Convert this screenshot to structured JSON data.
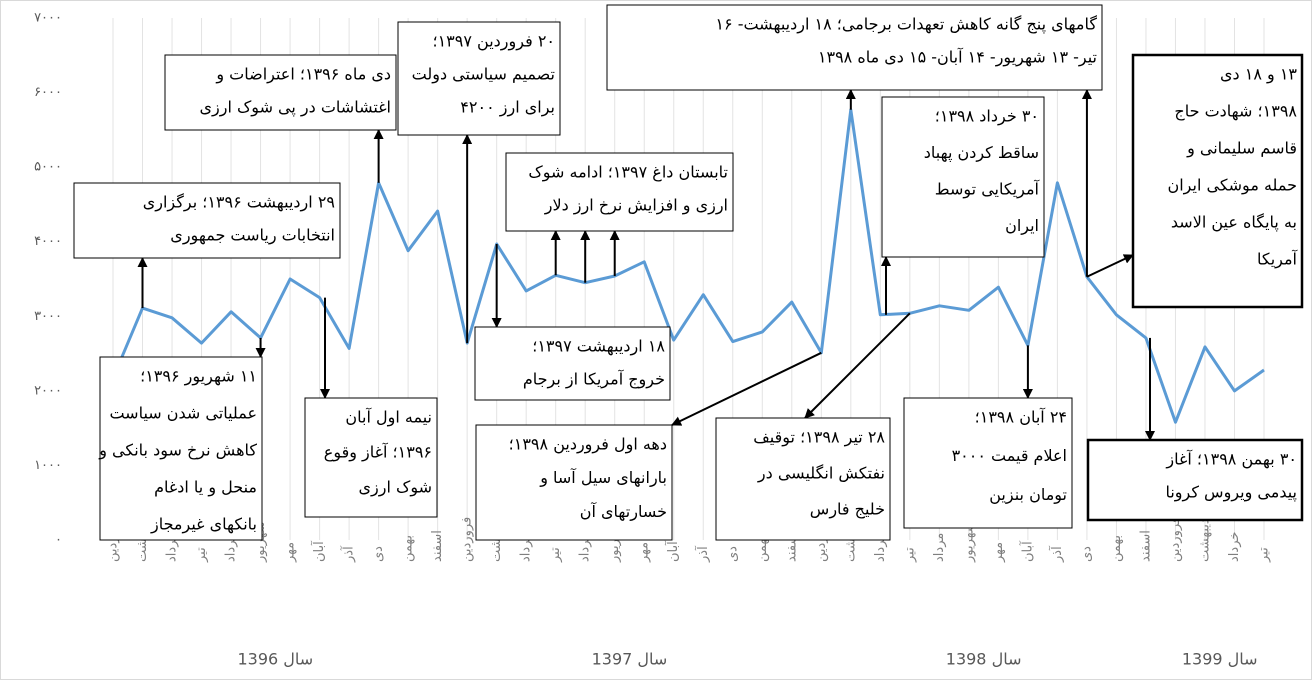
{
  "chart_data": {
    "type": "line",
    "groups": [
      {
        "name": "سال 1396",
        "categories": [
          "فروردین",
          "اردیبهشت",
          "خرداد",
          "تیر",
          "مرداد",
          "شهریور",
          "مهر",
          "آبان",
          "آذر",
          "دی",
          "بهمن",
          "اسفند"
        ]
      },
      {
        "name": "سال 1397",
        "categories": [
          "فروردین",
          "اردیبهشت",
          "خرداد",
          "تیر",
          "مرداد",
          "شهریور",
          "مهر",
          "آبان",
          "آذر",
          "دی",
          "بهمن",
          "اسفند"
        ]
      },
      {
        "name": "سال 1398",
        "categories": [
          "فروردین",
          "اردیبهشت",
          "خرداد",
          "تیر",
          "مرداد",
          "شهریور",
          "مهر",
          "آبان",
          "آذر",
          "دی",
          "بهمن",
          "اسفند"
        ]
      },
      {
        "name": "سال 1399",
        "categories": [
          "فروردین",
          "اردیبهشت",
          "خرداد",
          "تیر"
        ]
      }
    ],
    "series": [
      {
        "color": "#5b9bd5",
        "values": [
          2170,
          3110,
          2980,
          2640,
          3060,
          2710,
          3500,
          3250,
          2570,
          4790,
          3880,
          4410,
          2640,
          3970,
          3340,
          3550,
          3450,
          3540,
          3730,
          2680,
          3290,
          2660,
          2790,
          3190,
          2510,
          5770,
          3020,
          3040,
          3140,
          3080,
          3390,
          2610,
          4790,
          3530,
          3020,
          2710,
          1580,
          2590,
          2000,
          2280
        ]
      }
    ],
    "ylim": [
      0,
      7000
    ],
    "yticks": [
      {
        "value": 0,
        "label": "۰"
      },
      {
        "value": 1000,
        "label": "۱۰۰۰"
      },
      {
        "value": 2000,
        "label": "۲۰۰۰"
      },
      {
        "value": 3000,
        "label": "۳۰۰۰"
      },
      {
        "value": 4000,
        "label": "۴۰۰۰"
      },
      {
        "value": 5000,
        "label": "۵۰۰۰"
      },
      {
        "value": 6000,
        "label": "۶۰۰۰"
      },
      {
        "value": 7000,
        "label": "۷۰۰۰"
      }
    ],
    "grid": true,
    "annotations": [
      {
        "lines": [
          "۲۹ اردیبهشت ۱۳۹۶؛ برگزاری",
          "انتخابات ریاست جمهوری"
        ]
      },
      {
        "lines": [
          "دی ماه ۱۳۹۶؛ اعتراضات و",
          "اغتشاشات در پی شوک ارزی"
        ]
      },
      {
        "lines": [
          "۲۰ فروردین ۱۳۹۷؛",
          "تصمیم سیاستی دولت",
          "برای ارز ۴۲۰۰"
        ]
      },
      {
        "lines": [
          "تابستان داغ ۱۳۹۷؛ ادامه شوک",
          "ارزی و افزایش نرخ ارز دلار"
        ]
      },
      {
        "lines": [
          "گامهای پنج گانه کاهش تعهدات برجامی؛ ۱۸ اردیبهشت- ۱۶",
          "تیر- ۱۳ شهریور- ۱۴ آبان- ۱۵ دی ماه ۱۳۹۸"
        ]
      },
      {
        "lines": [
          "۳۰ خرداد ۱۳۹۸؛",
          "ساقط کردن پهباد",
          "آمریکایی توسط",
          "ایران"
        ]
      },
      {
        "lines": [
          "۱۳ و ۱۸ دی",
          "۱۳۹۸؛ شهادت حاج",
          "قاسم سلیمانی و",
          "حمله موشکی ایران",
          "به پایگاه عین الاسد",
          "آمریکا"
        ]
      },
      {
        "lines": [
          "۱۱ شهریور ۱۳۹۶؛",
          "عملیاتی شدن سیاست",
          "کاهش نرخ سود بانکی و",
          "منحل و یا ادغام",
          "بانکهای غیرمجاز"
        ]
      },
      {
        "lines": [
          "نیمه اول آبان",
          "۱۳۹۶؛ آغاز وقوع",
          "شوک ارزی"
        ]
      },
      {
        "lines": [
          "۱۸ اردیبهشت ۱۳۹۷؛",
          "خروج آمریکا از برجام"
        ]
      },
      {
        "lines": [
          "دهه اول فروردین ۱۳۹۸؛",
          "بارانهای سیل آسا و",
          "خسارتهای آن"
        ]
      },
      {
        "lines": [
          "۲۸ تیر ۱۳۹۸؛ توقیف",
          "نفتکش انگلیسی در",
          "خلیج فارس"
        ]
      },
      {
        "lines": [
          "۲۴ آبان ۱۳۹۸؛",
          "اعلام قیمت ۳۰۰۰",
          "تومان بنزین"
        ]
      },
      {
        "lines": [
          "۳۰ بهمن ۱۳۹۸؛ آغاز",
          "پیدمی ویروس کرونا"
        ]
      }
    ]
  }
}
